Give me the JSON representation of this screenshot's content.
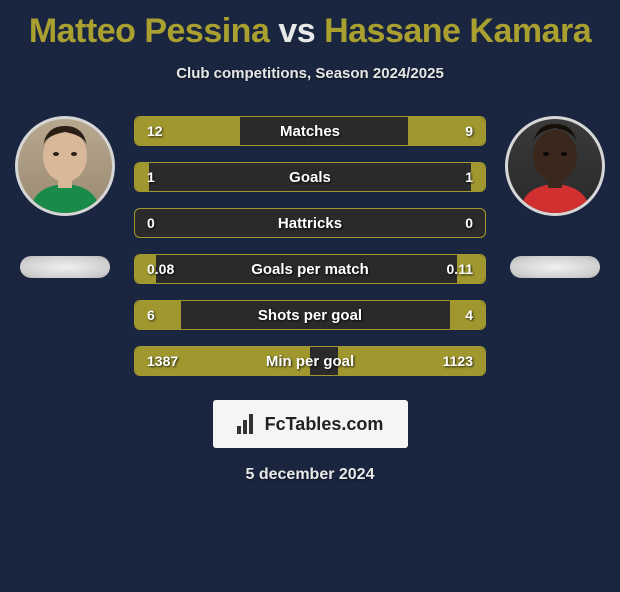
{
  "title": {
    "player1": "Matteo Pessina",
    "vs": "vs",
    "player2": "Hassane Kamara",
    "player1_color": "#a9a030",
    "player2_color": "#a9a030",
    "vs_color": "#e8e8e8",
    "fontsize": 34
  },
  "subtitle": "Club competitions, Season 2024/2025",
  "avatars": {
    "left": {
      "skin": "#d9b89a",
      "hair": "#2a1e15",
      "shirt": "#1a8a4a",
      "bg": "#a89578"
    },
    "right": {
      "skin": "#3a281c",
      "hair": "#141008",
      "shirt": "#d13030",
      "bg": "#2f2f2f"
    }
  },
  "stats": {
    "bar_color": "#a0982f",
    "bg_color": "#2a2a2a",
    "rows": [
      {
        "label": "Matches",
        "left": "12",
        "right": "9",
        "fill_left_pct": 30,
        "fill_right_pct": 22
      },
      {
        "label": "Goals",
        "left": "1",
        "right": "1",
        "fill_left_pct": 4,
        "fill_right_pct": 4
      },
      {
        "label": "Hattricks",
        "left": "0",
        "right": "0",
        "fill_left_pct": 0,
        "fill_right_pct": 0
      },
      {
        "label": "Goals per match",
        "left": "0.08",
        "right": "0.11",
        "fill_left_pct": 6,
        "fill_right_pct": 8
      },
      {
        "label": "Shots per goal",
        "left": "6",
        "right": "4",
        "fill_left_pct": 13,
        "fill_right_pct": 10
      },
      {
        "label": "Min per goal",
        "left": "1387",
        "right": "1123",
        "fill_left_pct": 50,
        "fill_right_pct": 42
      }
    ]
  },
  "branding": {
    "text": "FcTables.com",
    "bg": "#f5f5f5",
    "text_color": "#222222"
  },
  "date": "5 december 2024",
  "colors": {
    "page_bg": "#1a2640",
    "text": "#ffffff",
    "pill_bg": "#d8d8d8"
  }
}
